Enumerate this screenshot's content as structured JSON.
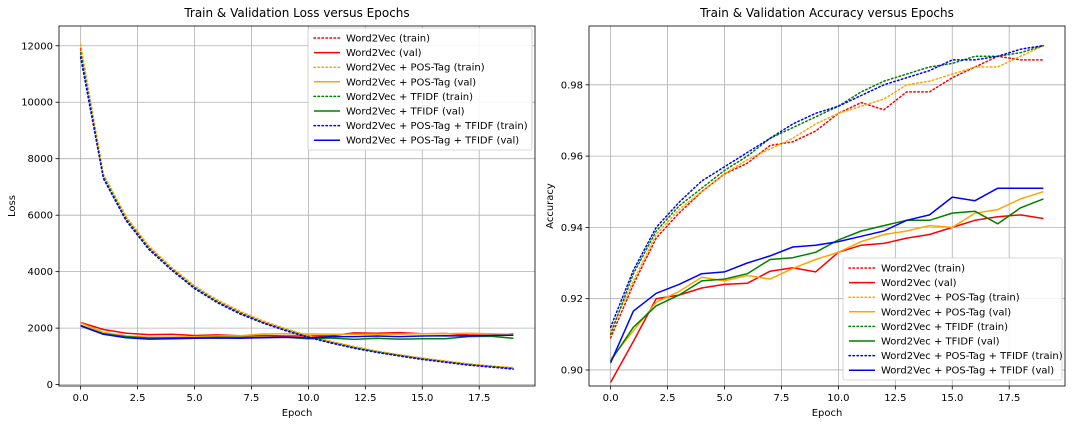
{
  "chart_data": [
    {
      "type": "line",
      "title": "Train & Validation Loss versus Epochs",
      "xlabel": "Epoch",
      "ylabel": "Loss",
      "xlim": [
        -0.95,
        19.95
      ],
      "ylim": [
        -50,
        12700
      ],
      "xticks": [
        0.0,
        2.5,
        5.0,
        7.5,
        10.0,
        12.5,
        15.0,
        17.5
      ],
      "xtick_labels": [
        "0.0",
        "2.5",
        "5.0",
        "7.5",
        "10.0",
        "12.5",
        "15.0",
        "17.5"
      ],
      "yticks": [
        0,
        2000,
        4000,
        6000,
        8000,
        10000,
        12000
      ],
      "ytick_labels": [
        "0",
        "2000",
        "4000",
        "6000",
        "8000",
        "10000",
        "12000"
      ],
      "grid": true,
      "legend_position": "top-right",
      "x": [
        0,
        1,
        2,
        3,
        4,
        5,
        6,
        7,
        8,
        9,
        10,
        11,
        12,
        13,
        14,
        15,
        16,
        17,
        18,
        19
      ],
      "series": [
        {
          "name": "Word2Vec (train)",
          "color": "#ff0000",
          "style": "dotted",
          "values": [
            11900,
            7400,
            5900,
            4850,
            4100,
            3450,
            2950,
            2550,
            2220,
            1950,
            1700,
            1500,
            1320,
            1170,
            1040,
            920,
            820,
            720,
            650,
            580
          ]
        },
        {
          "name": "Word2Vec (val)",
          "color": "#ff0000",
          "style": "solid",
          "values": [
            2200,
            1950,
            1820,
            1770,
            1780,
            1740,
            1760,
            1730,
            1740,
            1720,
            1720,
            1730,
            1830,
            1820,
            1840,
            1800,
            1810,
            1760,
            1740,
            1800
          ]
        },
        {
          "name": "Word2Vec + POS-Tag (train)",
          "color": "#ffa500",
          "style": "dotted",
          "values": [
            12050,
            7450,
            5950,
            4900,
            4150,
            3500,
            3000,
            2600,
            2260,
            1980,
            1730,
            1530,
            1350,
            1190,
            1060,
            940,
            840,
            740,
            660,
            600
          ]
        },
        {
          "name": "Word2Vec + POS-Tag (val)",
          "color": "#ffa500",
          "style": "solid",
          "values": [
            2180,
            1850,
            1720,
            1680,
            1680,
            1700,
            1720,
            1730,
            1790,
            1800,
            1790,
            1780,
            1780,
            1780,
            1790,
            1800,
            1800,
            1820,
            1800,
            1780
          ]
        },
        {
          "name": "Word2Vec + TFIDF (train)",
          "color": "#008000",
          "style": "dotted",
          "values": [
            11750,
            7350,
            5850,
            4820,
            4080,
            3430,
            2930,
            2530,
            2200,
            1930,
            1690,
            1490,
            1310,
            1160,
            1030,
            910,
            810,
            710,
            640,
            570
          ]
        },
        {
          "name": "Word2Vec + TFIDF (val)",
          "color": "#008000",
          "style": "solid",
          "values": [
            2100,
            1800,
            1700,
            1650,
            1660,
            1660,
            1680,
            1670,
            1670,
            1680,
            1620,
            1650,
            1600,
            1640,
            1610,
            1620,
            1620,
            1700,
            1710,
            1640
          ]
        },
        {
          "name": "Word2Vec + POS-Tag + TFIDF (train)",
          "color": "#0000ff",
          "style": "dotted",
          "values": [
            11600,
            7300,
            5800,
            4780,
            4050,
            3400,
            2900,
            2500,
            2180,
            1910,
            1670,
            1470,
            1290,
            1140,
            1010,
            890,
            790,
            690,
            620,
            550
          ]
        },
        {
          "name": "Word2Vec + POS-Tag + TFIDF (val)",
          "color": "#0000ff",
          "style": "solid",
          "values": [
            2080,
            1780,
            1660,
            1610,
            1620,
            1640,
            1650,
            1640,
            1660,
            1680,
            1650,
            1700,
            1700,
            1720,
            1700,
            1720,
            1730,
            1720,
            1740,
            1750
          ]
        }
      ]
    },
    {
      "type": "line",
      "title": "Train & Validation Accuracy versus Epochs",
      "xlabel": "Epoch",
      "ylabel": "Accuracy",
      "xlim": [
        -0.95,
        19.95
      ],
      "ylim": [
        0.8955,
        0.9965
      ],
      "xticks": [
        0.0,
        2.5,
        5.0,
        7.5,
        10.0,
        12.5,
        15.0,
        17.5
      ],
      "xtick_labels": [
        "0.0",
        "2.5",
        "5.0",
        "7.5",
        "10.0",
        "12.5",
        "15.0",
        "17.5"
      ],
      "yticks": [
        0.9,
        0.92,
        0.94,
        0.96,
        0.98
      ],
      "ytick_labels": [
        "0.90",
        "0.92",
        "0.94",
        "0.96",
        "0.98"
      ],
      "grid": true,
      "legend_position": "bottom-right",
      "x": [
        0,
        1,
        2,
        3,
        4,
        5,
        6,
        7,
        8,
        9,
        10,
        11,
        12,
        13,
        14,
        15,
        16,
        17,
        18,
        19
      ],
      "series": [
        {
          "name": "Word2Vec (train)",
          "color": "#ff0000",
          "style": "dotted",
          "values": [
            0.909,
            0.924,
            0.937,
            0.944,
            0.95,
            0.955,
            0.958,
            0.963,
            0.964,
            0.967,
            0.972,
            0.975,
            0.973,
            0.978,
            0.978,
            0.982,
            0.985,
            0.988,
            0.987,
            0.987
          ]
        },
        {
          "name": "Word2Vec (val)",
          "color": "#ff0000",
          "style": "solid",
          "values": [
            0.8965,
            0.908,
            0.92,
            0.921,
            0.923,
            0.924,
            0.9243,
            0.9277,
            0.9287,
            0.9275,
            0.933,
            0.935,
            0.9355,
            0.937,
            0.938,
            0.94,
            0.942,
            0.943,
            0.9435,
            0.9425
          ]
        },
        {
          "name": "Word2Vec + POS-Tag (train)",
          "color": "#ffa500",
          "style": "dotted",
          "values": [
            0.911,
            0.925,
            0.938,
            0.945,
            0.95,
            0.955,
            0.959,
            0.962,
            0.965,
            0.969,
            0.972,
            0.974,
            0.976,
            0.98,
            0.981,
            0.983,
            0.985,
            0.985,
            0.988,
            0.991
          ]
        },
        {
          "name": "Word2Vec + POS-Tag (val)",
          "color": "#ffa500",
          "style": "solid",
          "values": [
            0.903,
            0.911,
            0.919,
            0.922,
            0.926,
            0.925,
            0.9265,
            0.9255,
            0.9285,
            0.931,
            0.933,
            0.936,
            0.938,
            0.939,
            0.9405,
            0.94,
            0.944,
            0.945,
            0.948,
            0.95
          ]
        },
        {
          "name": "Word2Vec + TFIDF (train)",
          "color": "#008000",
          "style": "dotted",
          "values": [
            0.91,
            0.927,
            0.939,
            0.946,
            0.951,
            0.956,
            0.96,
            0.965,
            0.968,
            0.971,
            0.974,
            0.978,
            0.981,
            0.983,
            0.985,
            0.986,
            0.988,
            0.988,
            0.989,
            0.991
          ]
        },
        {
          "name": "Word2Vec + TFIDF (val)",
          "color": "#008000",
          "style": "solid",
          "values": [
            0.9025,
            0.912,
            0.918,
            0.921,
            0.925,
            0.9255,
            0.927,
            0.931,
            0.9315,
            0.933,
            0.9365,
            0.939,
            0.9405,
            0.942,
            0.942,
            0.944,
            0.9445,
            0.941,
            0.9455,
            0.948
          ]
        },
        {
          "name": "Word2Vec + POS-Tag + TFIDF (train)",
          "color": "#0000ff",
          "style": "dotted",
          "values": [
            0.912,
            0.928,
            0.94,
            0.947,
            0.953,
            0.957,
            0.961,
            0.965,
            0.969,
            0.972,
            0.974,
            0.977,
            0.98,
            0.982,
            0.984,
            0.987,
            0.987,
            0.988,
            0.99,
            0.991
          ]
        },
        {
          "name": "Word2Vec + POS-Tag + TFIDF (val)",
          "color": "#0000ff",
          "style": "solid",
          "values": [
            0.902,
            0.9165,
            0.9215,
            0.924,
            0.927,
            0.9275,
            0.93,
            0.932,
            0.9345,
            0.935,
            0.936,
            0.9375,
            0.939,
            0.942,
            0.9435,
            0.9485,
            0.9475,
            0.951,
            0.951,
            0.951
          ]
        }
      ]
    }
  ]
}
